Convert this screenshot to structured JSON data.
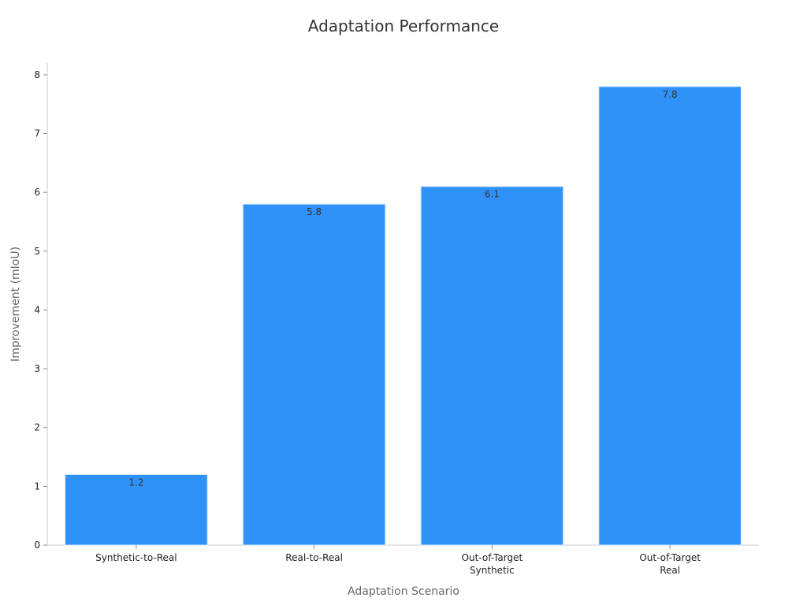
{
  "chart_data": {
    "type": "bar",
    "title": "Adaptation Performance",
    "xlabel": "Adaptation Scenario",
    "ylabel": "Improvement (mIoU)",
    "categories": [
      [
        "Synthetic-to-Real"
      ],
      [
        "Real-to-Real"
      ],
      [
        "Out-of-Target",
        "Synthetic"
      ],
      [
        "Out-of-Target",
        "Real"
      ]
    ],
    "values": [
      1.2,
      5.8,
      6.1,
      7.8
    ],
    "value_labels": [
      "1.2",
      "5.8",
      "6.1",
      "7.8"
    ],
    "ylim": [
      0,
      8.2
    ],
    "yticks": [
      0,
      1,
      2,
      3,
      4,
      5,
      6,
      7,
      8
    ],
    "grid": false,
    "legend": "none",
    "colors": {
      "bar": "#2f92f9",
      "bar_edge": "#dbe9f7",
      "axis": "#cccccc",
      "text": "#222222",
      "title": "#333333",
      "axis_title": "#666666"
    }
  }
}
